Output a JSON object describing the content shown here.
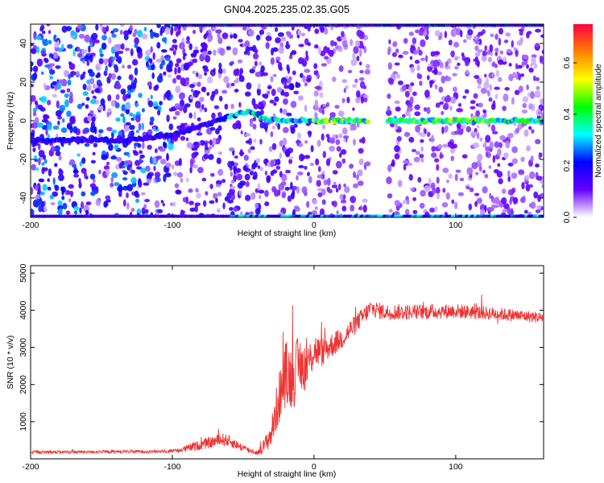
{
  "title": "GN04.2025.235.02.35.G05",
  "chart_data": [
    {
      "type": "heatmap",
      "name": "spectrogram",
      "xlabel": "Height of straight line (km)",
      "ylabel": "Frequency (Hz)",
      "xlim": [
        -200,
        162
      ],
      "ylim": [
        -50,
        50
      ],
      "x_ticks": [
        -200,
        -100,
        0,
        100
      ],
      "y_ticks": [
        -40,
        -20,
        0,
        20,
        40
      ],
      "colorbar": {
        "label": "Normalized spectral amplitude",
        "range": [
          0.0,
          0.75
        ],
        "ticks": [
          0.0,
          0.2,
          0.4,
          0.6
        ],
        "colormap": [
          "#ffffff",
          "#6600ff",
          "#0000ff",
          "#00ffff",
          "#00ff00",
          "#ffff00",
          "#ff8000",
          "#ff0040"
        ]
      },
      "gap_x": [
        38,
        52
      ],
      "track": {
        "x": [
          -200,
          -160,
          -130,
          -100,
          -80,
          -60,
          -45,
          -35,
          -20,
          0,
          40,
          100,
          162
        ],
        "y": [
          -10,
          -10,
          -10,
          -7,
          -3,
          2,
          5,
          1,
          0,
          0,
          0,
          0,
          0
        ]
      }
    },
    {
      "type": "line",
      "name": "snr",
      "xlabel": "Height of straight line (km)",
      "ylabel": "SNR (10 * v/v)",
      "xlim": [
        -200,
        162
      ],
      "ylim": [
        0,
        5200
      ],
      "x_ticks": [
        -200,
        -100,
        0,
        100
      ],
      "y_ticks": [
        1000,
        2000,
        3000,
        4000,
        5000
      ],
      "color": "#ee3333",
      "x": [
        -200,
        -150,
        -110,
        -95,
        -85,
        -75,
        -65,
        -60,
        -50,
        -40,
        -35,
        -30,
        -25,
        -20,
        -15,
        -10,
        -5,
        0,
        5,
        10,
        20,
        30,
        40,
        50,
        70,
        100,
        130,
        162
      ],
      "y": [
        180,
        190,
        200,
        230,
        330,
        420,
        520,
        480,
        290,
        160,
        360,
        700,
        1600,
        2300,
        2200,
        2550,
        2450,
        2950,
        2850,
        3000,
        3250,
        3650,
        4050,
        3950,
        3950,
        3980,
        3900,
        3800
      ],
      "noise": [
        40,
        40,
        40,
        60,
        120,
        150,
        180,
        160,
        100,
        60,
        200,
        400,
        700,
        900,
        900,
        800,
        600,
        500,
        400,
        350,
        300,
        260,
        240,
        220,
        210,
        200,
        180,
        150
      ]
    }
  ]
}
